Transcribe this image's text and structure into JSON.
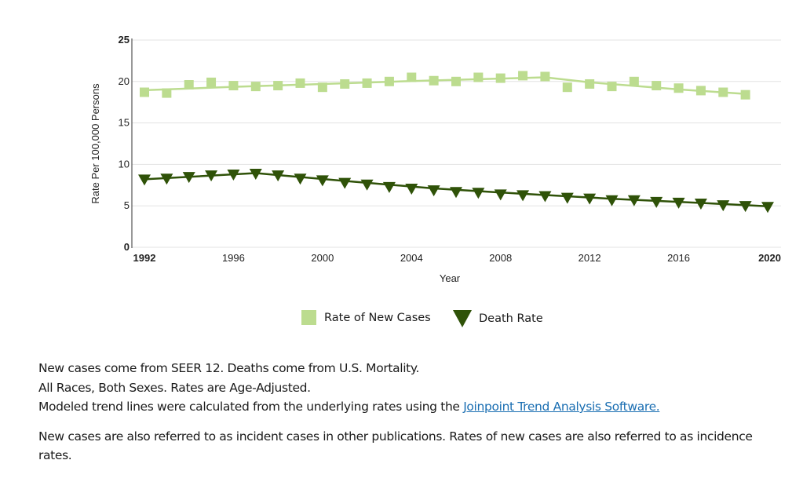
{
  "chart_data": {
    "type": "line",
    "title": "",
    "xlabel": "Year",
    "ylabel": "Rate Per 100,000 Persons",
    "xlim": [
      1992,
      2020
    ],
    "ylim": [
      0,
      25
    ],
    "x_ticks": [
      "1992",
      "1996",
      "2000",
      "2004",
      "2008",
      "2012",
      "2016",
      "2020"
    ],
    "x_ticks_bold": [
      "1992",
      "2020"
    ],
    "y_ticks": [
      "0",
      "5",
      "10",
      "15",
      "20",
      "25"
    ],
    "y_ticks_bold": [
      "0",
      "25"
    ],
    "grid": true,
    "legend_position": "bottom-center",
    "series": [
      {
        "name": "Rate of New Cases",
        "marker": "square",
        "color": "#bcdc8f",
        "x": [
          1992,
          1993,
          1994,
          1995,
          1996,
          1997,
          1998,
          1999,
          2000,
          2001,
          2002,
          2003,
          2004,
          2005,
          2006,
          2007,
          2008,
          2009,
          2010,
          2011,
          2012,
          2013,
          2014,
          2015,
          2016,
          2017,
          2018,
          2019
        ],
        "values": [
          18.7,
          18.6,
          19.6,
          19.9,
          19.5,
          19.4,
          19.5,
          19.8,
          19.3,
          19.7,
          19.8,
          20.0,
          20.5,
          20.1,
          20.0,
          20.5,
          20.4,
          20.7,
          20.6,
          19.3,
          19.7,
          19.4,
          20.0,
          19.5,
          19.2,
          18.9,
          18.7,
          18.4
        ],
        "trend_x": [
          1992,
          1996,
          2000,
          2004,
          2008,
          2010,
          2012,
          2016,
          2019
        ],
        "trend_values": [
          18.95,
          19.35,
          19.7,
          20.05,
          20.35,
          20.5,
          19.9,
          19.05,
          18.5
        ]
      },
      {
        "name": "Death Rate",
        "marker": "triangle-down",
        "color": "#2f5208",
        "x": [
          1992,
          1993,
          1994,
          1995,
          1996,
          1997,
          1998,
          1999,
          2000,
          2001,
          2002,
          2003,
          2004,
          2005,
          2006,
          2007,
          2008,
          2009,
          2010,
          2011,
          2012,
          2013,
          2014,
          2015,
          2016,
          2017,
          2018,
          2019,
          2020
        ],
        "values": [
          8.3,
          8.4,
          8.6,
          8.8,
          8.9,
          9.0,
          8.8,
          8.4,
          8.2,
          7.9,
          7.7,
          7.4,
          7.2,
          7.0,
          6.8,
          6.7,
          6.5,
          6.4,
          6.3,
          6.1,
          6.0,
          5.8,
          5.8,
          5.6,
          5.5,
          5.4,
          5.2,
          5.1,
          5.0
        ],
        "trend_x": [
          1992,
          1997,
          2001,
          2005,
          2009,
          2013,
          2017,
          2020
        ],
        "trend_values": [
          8.2,
          8.95,
          8.0,
          7.1,
          6.45,
          5.85,
          5.35,
          4.95
        ]
      }
    ]
  },
  "legend": {
    "items": [
      {
        "label": "Rate of New Cases",
        "color": "#bcdc8f",
        "icon": "square-marker"
      },
      {
        "label": "Death Rate",
        "color": "#2f5208",
        "icon": "triangle-down-marker"
      }
    ]
  },
  "notes": {
    "line1": "New cases come from SEER 12. Deaths come from U.S. Mortality.",
    "line2": "All Races, Both Sexes. Rates are Age-Adjusted.",
    "line3_prefix": "Modeled trend lines were calculated from the underlying rates using the ",
    "line3_link": "Joinpoint Trend Analysis Software.",
    "paragraph2": "New cases are also referred to as incident cases in other publications. Rates of new cases are also referred to as incidence rates."
  },
  "colors": {
    "link": "#1a6eb2",
    "gridline": "#e3e3e3",
    "axis": "#555555"
  }
}
